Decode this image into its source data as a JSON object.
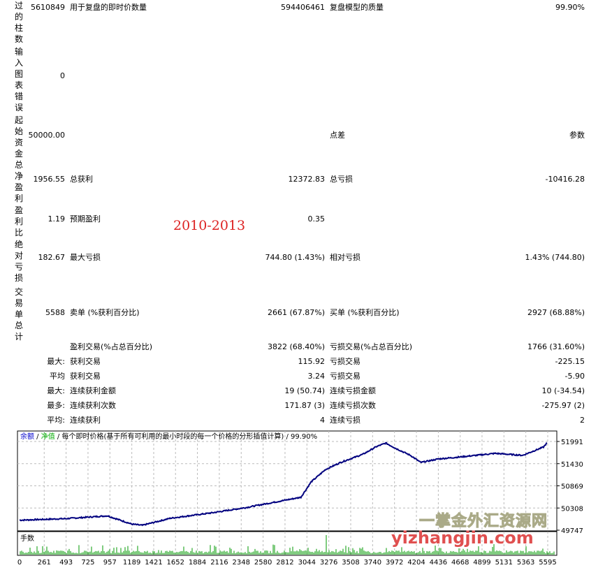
{
  "left_labels": [
    "过的柱数",
    "输入图表错误",
    "起始资金",
    "总净盈利",
    "盈利比",
    "绝对亏损",
    "交易单总计"
  ],
  "rows": [
    {
      "v1": "5610849",
      "l2": "用于复盘的即时价数量",
      "v2": "594406461",
      "l3": "复盘模型的质量",
      "v3": "99.90%"
    },
    {
      "v1": "0",
      "l2": "",
      "v2": "",
      "l3": "",
      "v3": ""
    },
    {
      "v1": "50000.00",
      "l2": "",
      "v2": "",
      "l3": "点差",
      "v3": "参数"
    },
    {
      "v1": "1956.55",
      "l2": "总获利",
      "v2": "12372.83",
      "l3": "总亏损",
      "v3": "-10416.28"
    },
    {
      "v1": "1.19",
      "l2": "预期盈利",
      "v2": "0.35",
      "l3": "",
      "v3": ""
    },
    {
      "v1": "182.67",
      "l2": "最大亏损",
      "v2": "744.80 (1.43%)",
      "l3": "相对亏损",
      "v3": "1.43% (744.80)"
    },
    {
      "v1": "5588",
      "l2": "卖单 (%获利百分比)",
      "v2": "2661 (67.87%)",
      "l3": "买单 (%获利百分比)",
      "v3": "2927 (68.88%)"
    }
  ],
  "stats": [
    {
      "p": "",
      "l2": "盈利交易(%占总百分比)",
      "v2": "3822 (68.40%)",
      "l3": "亏损交易(%占总百分比)",
      "v3": "1766 (31.60%)"
    },
    {
      "p": "最大:",
      "l2": "获利交易",
      "v2": "115.92",
      "l3": "亏损交易",
      "v3": "-225.15"
    },
    {
      "p": "平均",
      "l2": "获利交易",
      "v2": "3.24",
      "l3": "亏损交易",
      "v3": "-5.90"
    },
    {
      "p": "最大:",
      "l2": "连续获利金额",
      "v2": "19 (50.74)",
      "l3": "连续亏损金额",
      "v3": "10 (-34.54)"
    },
    {
      "p": "最多:",
      "l2": "连续获利次数",
      "v2": "171.87 (3)",
      "l3": "连续亏损次数",
      "v3": "-275.97 (2)"
    },
    {
      "p": "平均:",
      "l2": "连续获利",
      "v2": "4",
      "l3": "连续亏损",
      "v3": "2"
    }
  ],
  "stamp": "2010-2013",
  "watermark": {
    "cn": "一掌金外汇资源网",
    "url": "yizhangjin.com"
  },
  "chart_data": {
    "type": "line",
    "legend": {
      "balance": "余额",
      "equity": "净值",
      "mode": "每个即时价格(基于所有可利用的最小时段的每一个价格的分形插值计算)",
      "quality": "99.90%"
    },
    "volume_label": "手数",
    "y_ticks": [
      51991,
      51430,
      50869,
      50308,
      49747
    ],
    "x_ticks": [
      0,
      261,
      493,
      725,
      957,
      1189,
      1421,
      1652,
      1884,
      2116,
      2348,
      2580,
      2812,
      3044,
      3276,
      3508,
      3740,
      3972,
      4204,
      4436,
      4668,
      4899,
      5131,
      5363,
      5595
    ],
    "ylim": [
      49747,
      52150
    ],
    "xlim": [
      0,
      5720
    ],
    "grid": true,
    "colors": {
      "line": "#00007f",
      "volume": "#009900",
      "legend_balance": "#0000cc",
      "legend_equity": "#00aa00"
    },
    "series": [
      {
        "x": [
          0,
          500,
          930,
          1190,
          1300,
          1600,
          2050,
          2400,
          2800,
          2980,
          3090,
          3240,
          3400,
          3640,
          3780,
          3880,
          3990,
          4140,
          4250,
          4440,
          4670,
          5040,
          5330,
          5550,
          5588
        ],
        "y": [
          50000,
          50040,
          50110,
          49900,
          49870,
          50050,
          50190,
          50320,
          50500,
          50580,
          50970,
          51280,
          51460,
          51670,
          51860,
          51950,
          51810,
          51640,
          51460,
          51550,
          51600,
          51690,
          51640,
          51850,
          51956
        ]
      }
    ]
  }
}
